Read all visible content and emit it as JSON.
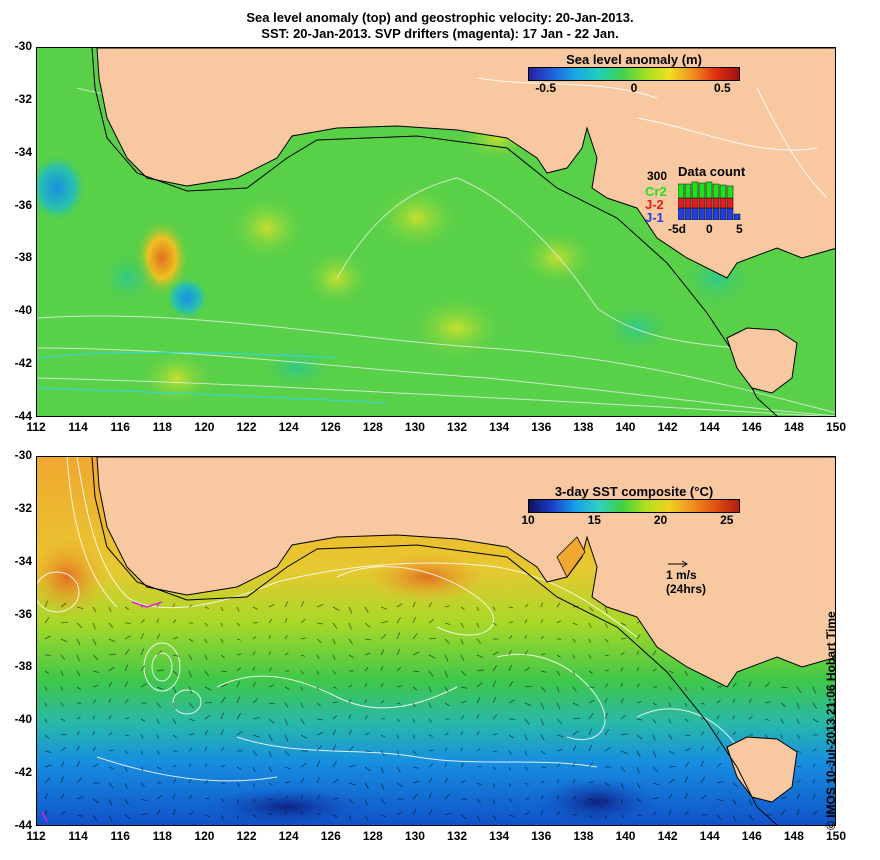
{
  "title": {
    "line1": "Sea level anomaly (top) and geostrophic velocity: 20-Jan-2013.",
    "line2": "SST: 20-Jan-2013. SVP drifters (magenta): 17 Jan - 22 Jan."
  },
  "axes": {
    "x_ticks": [
      "112",
      "114",
      "116",
      "118",
      "120",
      "122",
      "124",
      "126",
      "128",
      "130",
      "132",
      "134",
      "136",
      "138",
      "140",
      "142",
      "144",
      "146",
      "148",
      "150"
    ],
    "y_ticks": [
      "-30",
      "-32",
      "-34",
      "-36",
      "-38",
      "-40",
      "-42",
      "-44"
    ],
    "xlim": [
      112,
      150
    ],
    "ylim": [
      -44,
      -30
    ]
  },
  "sla_colorbar": {
    "title": "Sea level anomaly (m)",
    "ticks": [
      "-0.5",
      "0",
      "0.5"
    ],
    "range": [
      -0.6,
      0.6
    ]
  },
  "data_count": {
    "title": "Data count",
    "max_label": "300",
    "satellites": [
      {
        "name": "Cr2",
        "color": "#20e020"
      },
      {
        "name": "J-2",
        "color": "#e02020"
      },
      {
        "name": "J-1",
        "color": "#2040e0"
      }
    ],
    "x_ticks": [
      "-5d",
      "0",
      "5"
    ]
  },
  "sst_colorbar": {
    "title": "3-day SST composite (°C)",
    "ticks": [
      "10",
      "15",
      "20",
      "25"
    ],
    "range": [
      10,
      26
    ]
  },
  "velocity_scale": {
    "line1": "1 m/s",
    "line2": "(24hrs)"
  },
  "credit": "© IMOS 10-Jul-2013 21:06 Hobart Time",
  "colors": {
    "land": "#f8c8a0",
    "sla_background": "#58d048",
    "sst_warm": "#f0a830",
    "sst_cold": "#1868e0"
  }
}
